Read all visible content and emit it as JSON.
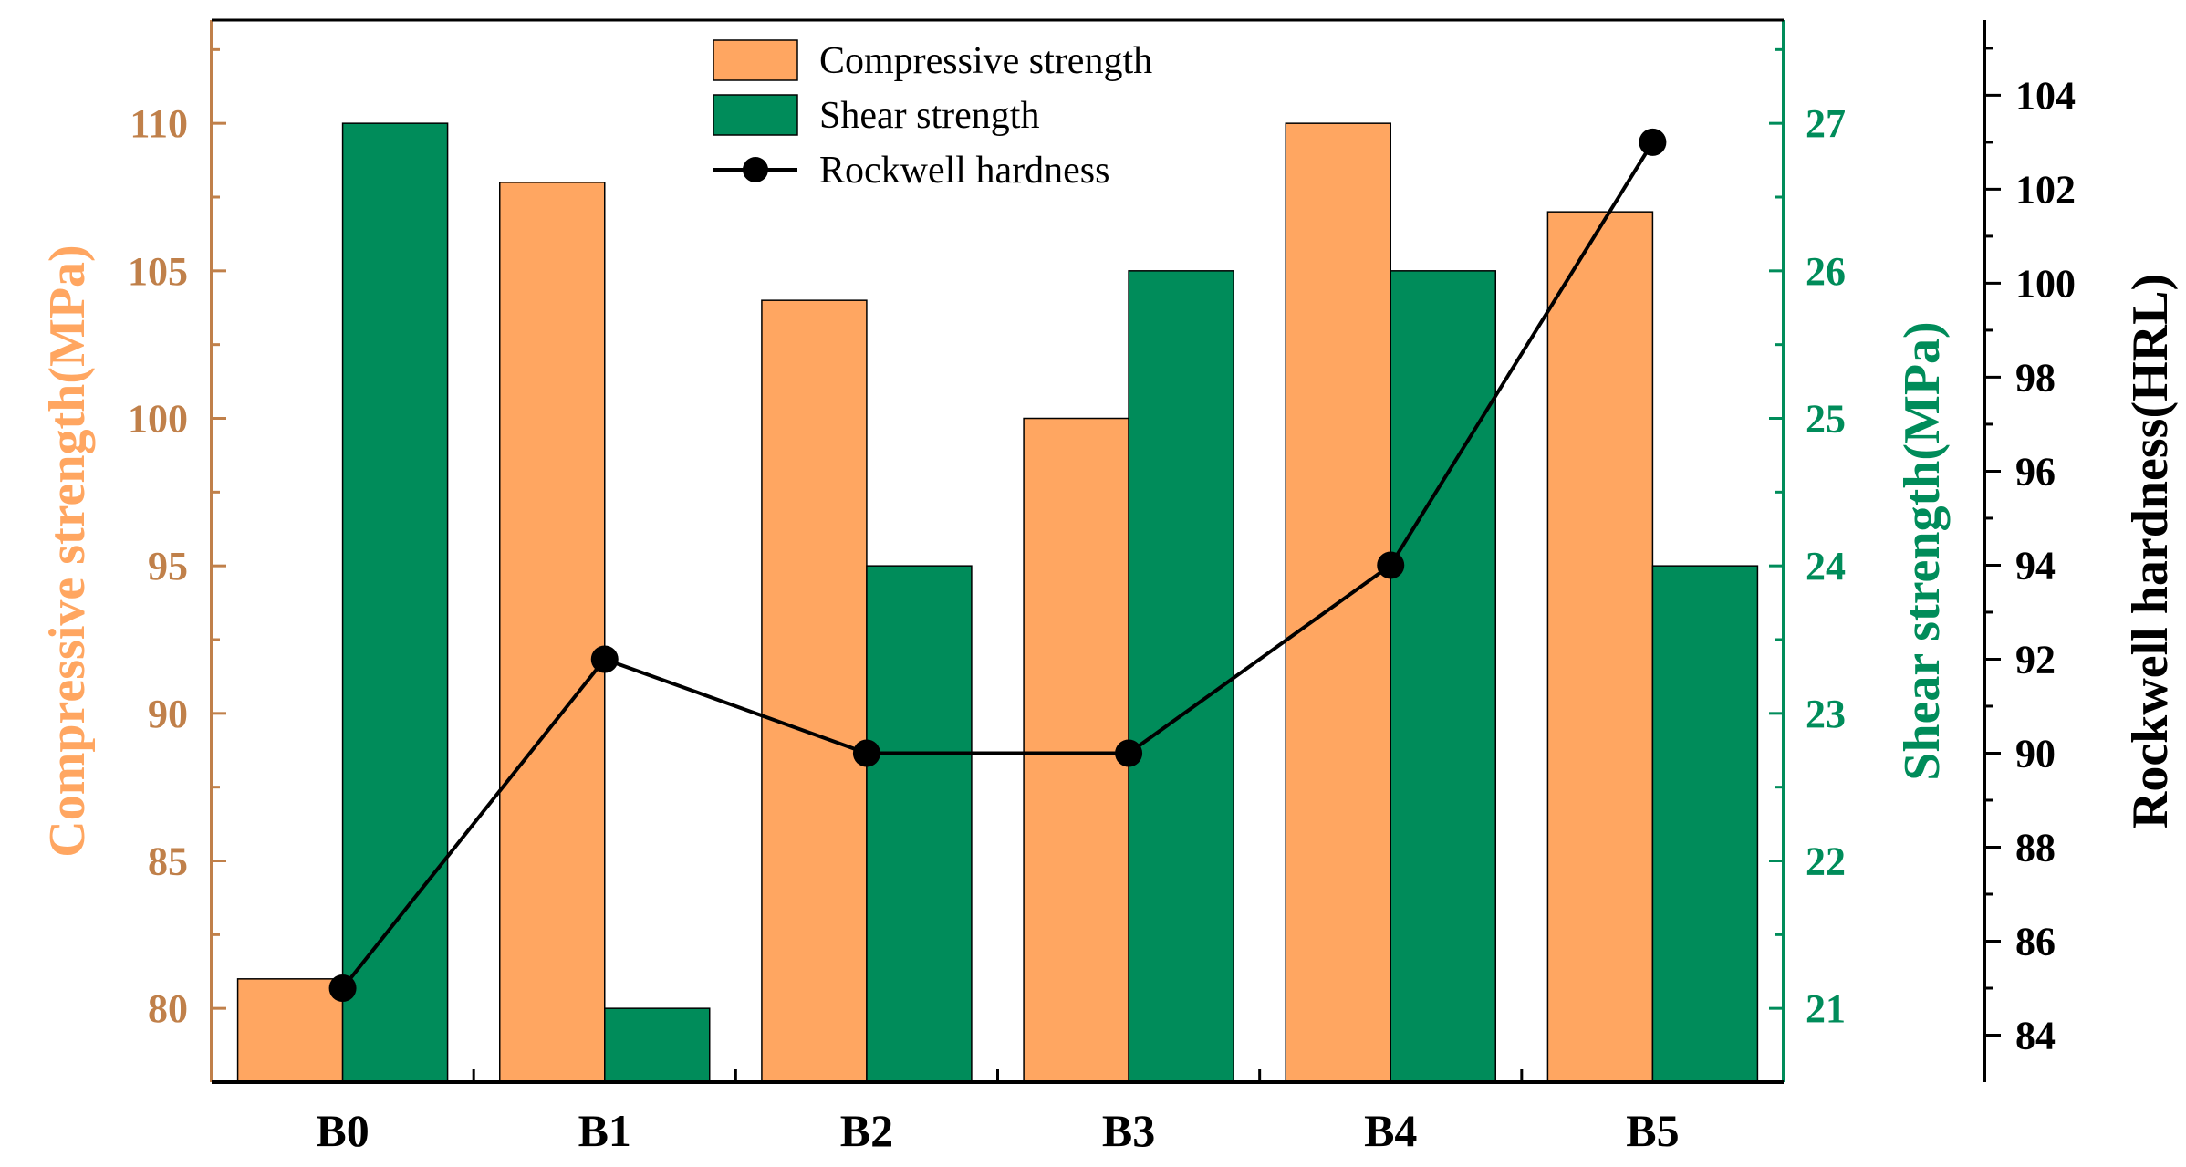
{
  "chart_data": {
    "type": "bar",
    "categories": [
      "B0",
      "B1",
      "B2",
      "B3",
      "B4",
      "B5"
    ],
    "series": [
      {
        "name": "Compressive strength",
        "kind": "bar",
        "axis": "left",
        "values": [
          81,
          108,
          104,
          100,
          110,
          107
        ],
        "color": "#FFA661"
      },
      {
        "name": "Shear strength",
        "kind": "bar",
        "axis": "right1",
        "values": [
          27,
          21,
          24,
          26,
          26,
          24
        ],
        "color": "#008C5A"
      },
      {
        "name": "Rockwell hardness",
        "kind": "line",
        "axis": "right2",
        "values": [
          85,
          92,
          90,
          90,
          94,
          103
        ],
        "color": "#000000"
      }
    ],
    "axes": {
      "left": {
        "label": "Compressive strength(MPa)",
        "ylim": [
          77.5,
          113.5
        ],
        "ticks": [
          "80",
          "85",
          "90",
          "95",
          "100",
          "105",
          "110"
        ],
        "label_color": "#FFA661",
        "tick_color": "#C0804A"
      },
      "right1": {
        "label": "Shear strength(MPa)",
        "ylim": [
          20.5,
          27.7
        ],
        "ticks": [
          "21",
          "22",
          "23",
          "24",
          "25",
          "26",
          "27"
        ],
        "color": "#008C5A"
      },
      "right2": {
        "label": "Rockwell hardness(HRL)",
        "ylim": [
          83,
          105.6
        ],
        "ticks": [
          "84",
          "86",
          "88",
          "90",
          "92",
          "94",
          "96",
          "98",
          "100",
          "102",
          "104"
        ],
        "color": "#000000"
      }
    },
    "legend": {
      "position": "top-center",
      "entries": [
        "Compressive strength",
        "Shear strength",
        "Rockwell hardness"
      ]
    }
  }
}
